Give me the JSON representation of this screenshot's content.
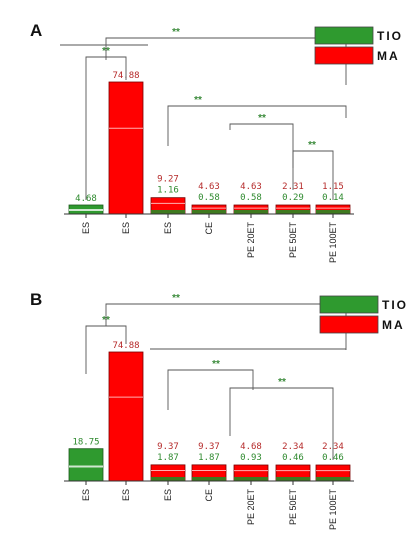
{
  "chart_data": [
    {
      "panel": "A",
      "type": "bar",
      "categories": [
        "ES",
        "ES",
        "ES",
        "CE",
        "PE 20ET",
        "PE 50ET",
        "PE 100ET"
      ],
      "series": [
        {
          "name": "TIO",
          "color": "#2f9a2f",
          "values": [
            4.68,
            null,
            1.16,
            0.58,
            0.58,
            0.29,
            0.14
          ]
        },
        {
          "name": "MA",
          "color": "#ff0000",
          "values": [
            null,
            74.88,
            9.27,
            4.63,
            4.63,
            2.31,
            1.15
          ]
        }
      ],
      "value_labels": [
        [
          "4.68"
        ],
        [
          "74.88"
        ],
        [
          "9.27",
          "1.16"
        ],
        [
          "4.63",
          "0.58"
        ],
        [
          "4.63",
          "0.58"
        ],
        [
          "2.31",
          "0.29"
        ],
        [
          "1.15",
          "0.14"
        ]
      ],
      "significance": [
        "**",
        "**",
        "**",
        "**",
        "**"
      ],
      "legend": [
        "TIO",
        "MA"
      ],
      "legend_position": "top-right"
    },
    {
      "panel": "B",
      "type": "bar",
      "categories": [
        "ES",
        "ES",
        "ES",
        "CE",
        "PE 20ET",
        "PE 50ET",
        "PE 100ET"
      ],
      "series": [
        {
          "name": "TIO",
          "color": "#2f9a2f",
          "values": [
            18.75,
            null,
            1.87,
            1.87,
            0.93,
            0.46,
            0.46
          ]
        },
        {
          "name": "MA",
          "color": "#ff0000",
          "values": [
            null,
            74.88,
            9.37,
            9.37,
            4.68,
            2.34,
            2.34
          ]
        }
      ],
      "value_labels": [
        [
          "18.75"
        ],
        [
          "74.88"
        ],
        [
          "9.37",
          "1.87"
        ],
        [
          "9.37",
          "1.87"
        ],
        [
          "4.68",
          "0.93"
        ],
        [
          "2.34",
          "0.46"
        ],
        [
          "2.34",
          "0.46"
        ]
      ],
      "significance": [
        "**",
        "**",
        "**",
        "**"
      ],
      "legend": [
        "TIO",
        "MA"
      ],
      "legend_position": "top-right"
    }
  ]
}
